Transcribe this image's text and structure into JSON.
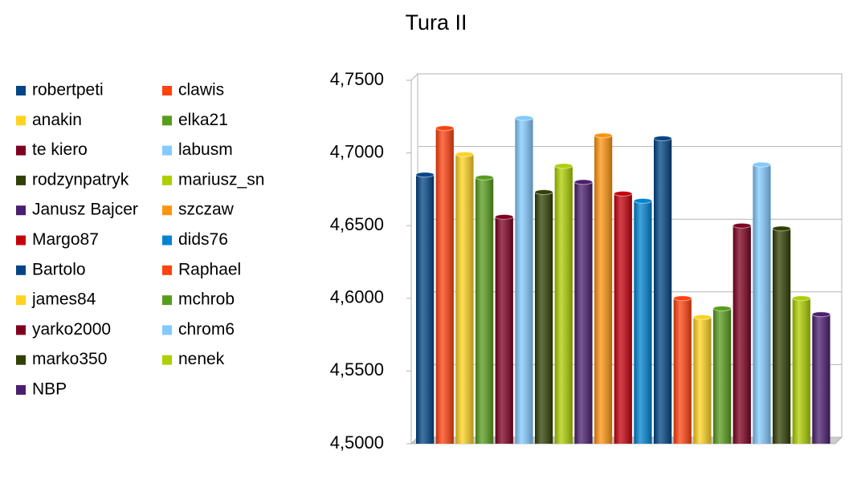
{
  "chart_data": {
    "type": "bar",
    "title": "Tura II",
    "ylim": [
      4.5,
      4.75
    ],
    "yticks": [
      {
        "value": 4.5,
        "label": "4,5000"
      },
      {
        "value": 4.55,
        "label": "4,5500"
      },
      {
        "value": 4.6,
        "label": "4,6000"
      },
      {
        "value": 4.65,
        "label": "4,6500"
      },
      {
        "value": 4.7,
        "label": "4,7000"
      },
      {
        "value": 4.75,
        "label": "4,7500"
      }
    ],
    "grid": true,
    "legend": "left",
    "series": [
      {
        "name": "robertpeti",
        "color": "#004586",
        "values": [
          4.685
        ]
      },
      {
        "name": "clawis",
        "color": "#ff420e",
        "values": [
          4.717
        ]
      },
      {
        "name": "anakin",
        "color": "#ffd320",
        "values": [
          4.699
        ]
      },
      {
        "name": "elka21",
        "color": "#579d1c",
        "values": [
          4.683
        ]
      },
      {
        "name": "te kiero",
        "color": "#7e0021",
        "values": [
          4.656
        ]
      },
      {
        "name": "labusm",
        "color": "#83caff",
        "values": [
          4.724
        ]
      },
      {
        "name": "rodzynpatryk",
        "color": "#314004",
        "values": [
          4.673
        ]
      },
      {
        "name": "mariusz_sn",
        "color": "#aecf00",
        "values": [
          4.691
        ]
      },
      {
        "name": "Janusz Bajcer",
        "color": "#4b1f6f",
        "values": [
          4.68
        ]
      },
      {
        "name": "szczaw",
        "color": "#ff950e",
        "values": [
          4.712
        ]
      },
      {
        "name": "Margo87",
        "color": "#c5000b",
        "values": [
          4.672
        ]
      },
      {
        "name": "dids76",
        "color": "#0084d1",
        "values": [
          4.667
        ]
      },
      {
        "name": "Bartolo",
        "color": "#004586",
        "values": [
          4.71
        ]
      },
      {
        "name": "Raphael",
        "color": "#ff420e",
        "values": [
          4.6
        ]
      },
      {
        "name": "james84",
        "color": "#ffd320",
        "values": [
          4.587
        ]
      },
      {
        "name": "mchrob",
        "color": "#579d1c",
        "values": [
          4.593
        ]
      },
      {
        "name": "yarko2000",
        "color": "#7e0021",
        "values": [
          4.65
        ]
      },
      {
        "name": "chrom6",
        "color": "#83caff",
        "values": [
          4.692
        ]
      },
      {
        "name": "marko350",
        "color": "#314004",
        "values": [
          4.648
        ]
      },
      {
        "name": "nenek",
        "color": "#aecf00",
        "values": [
          4.6
        ]
      },
      {
        "name": "NBP",
        "color": "#4b1f6f",
        "values": [
          4.589
        ]
      }
    ]
  }
}
